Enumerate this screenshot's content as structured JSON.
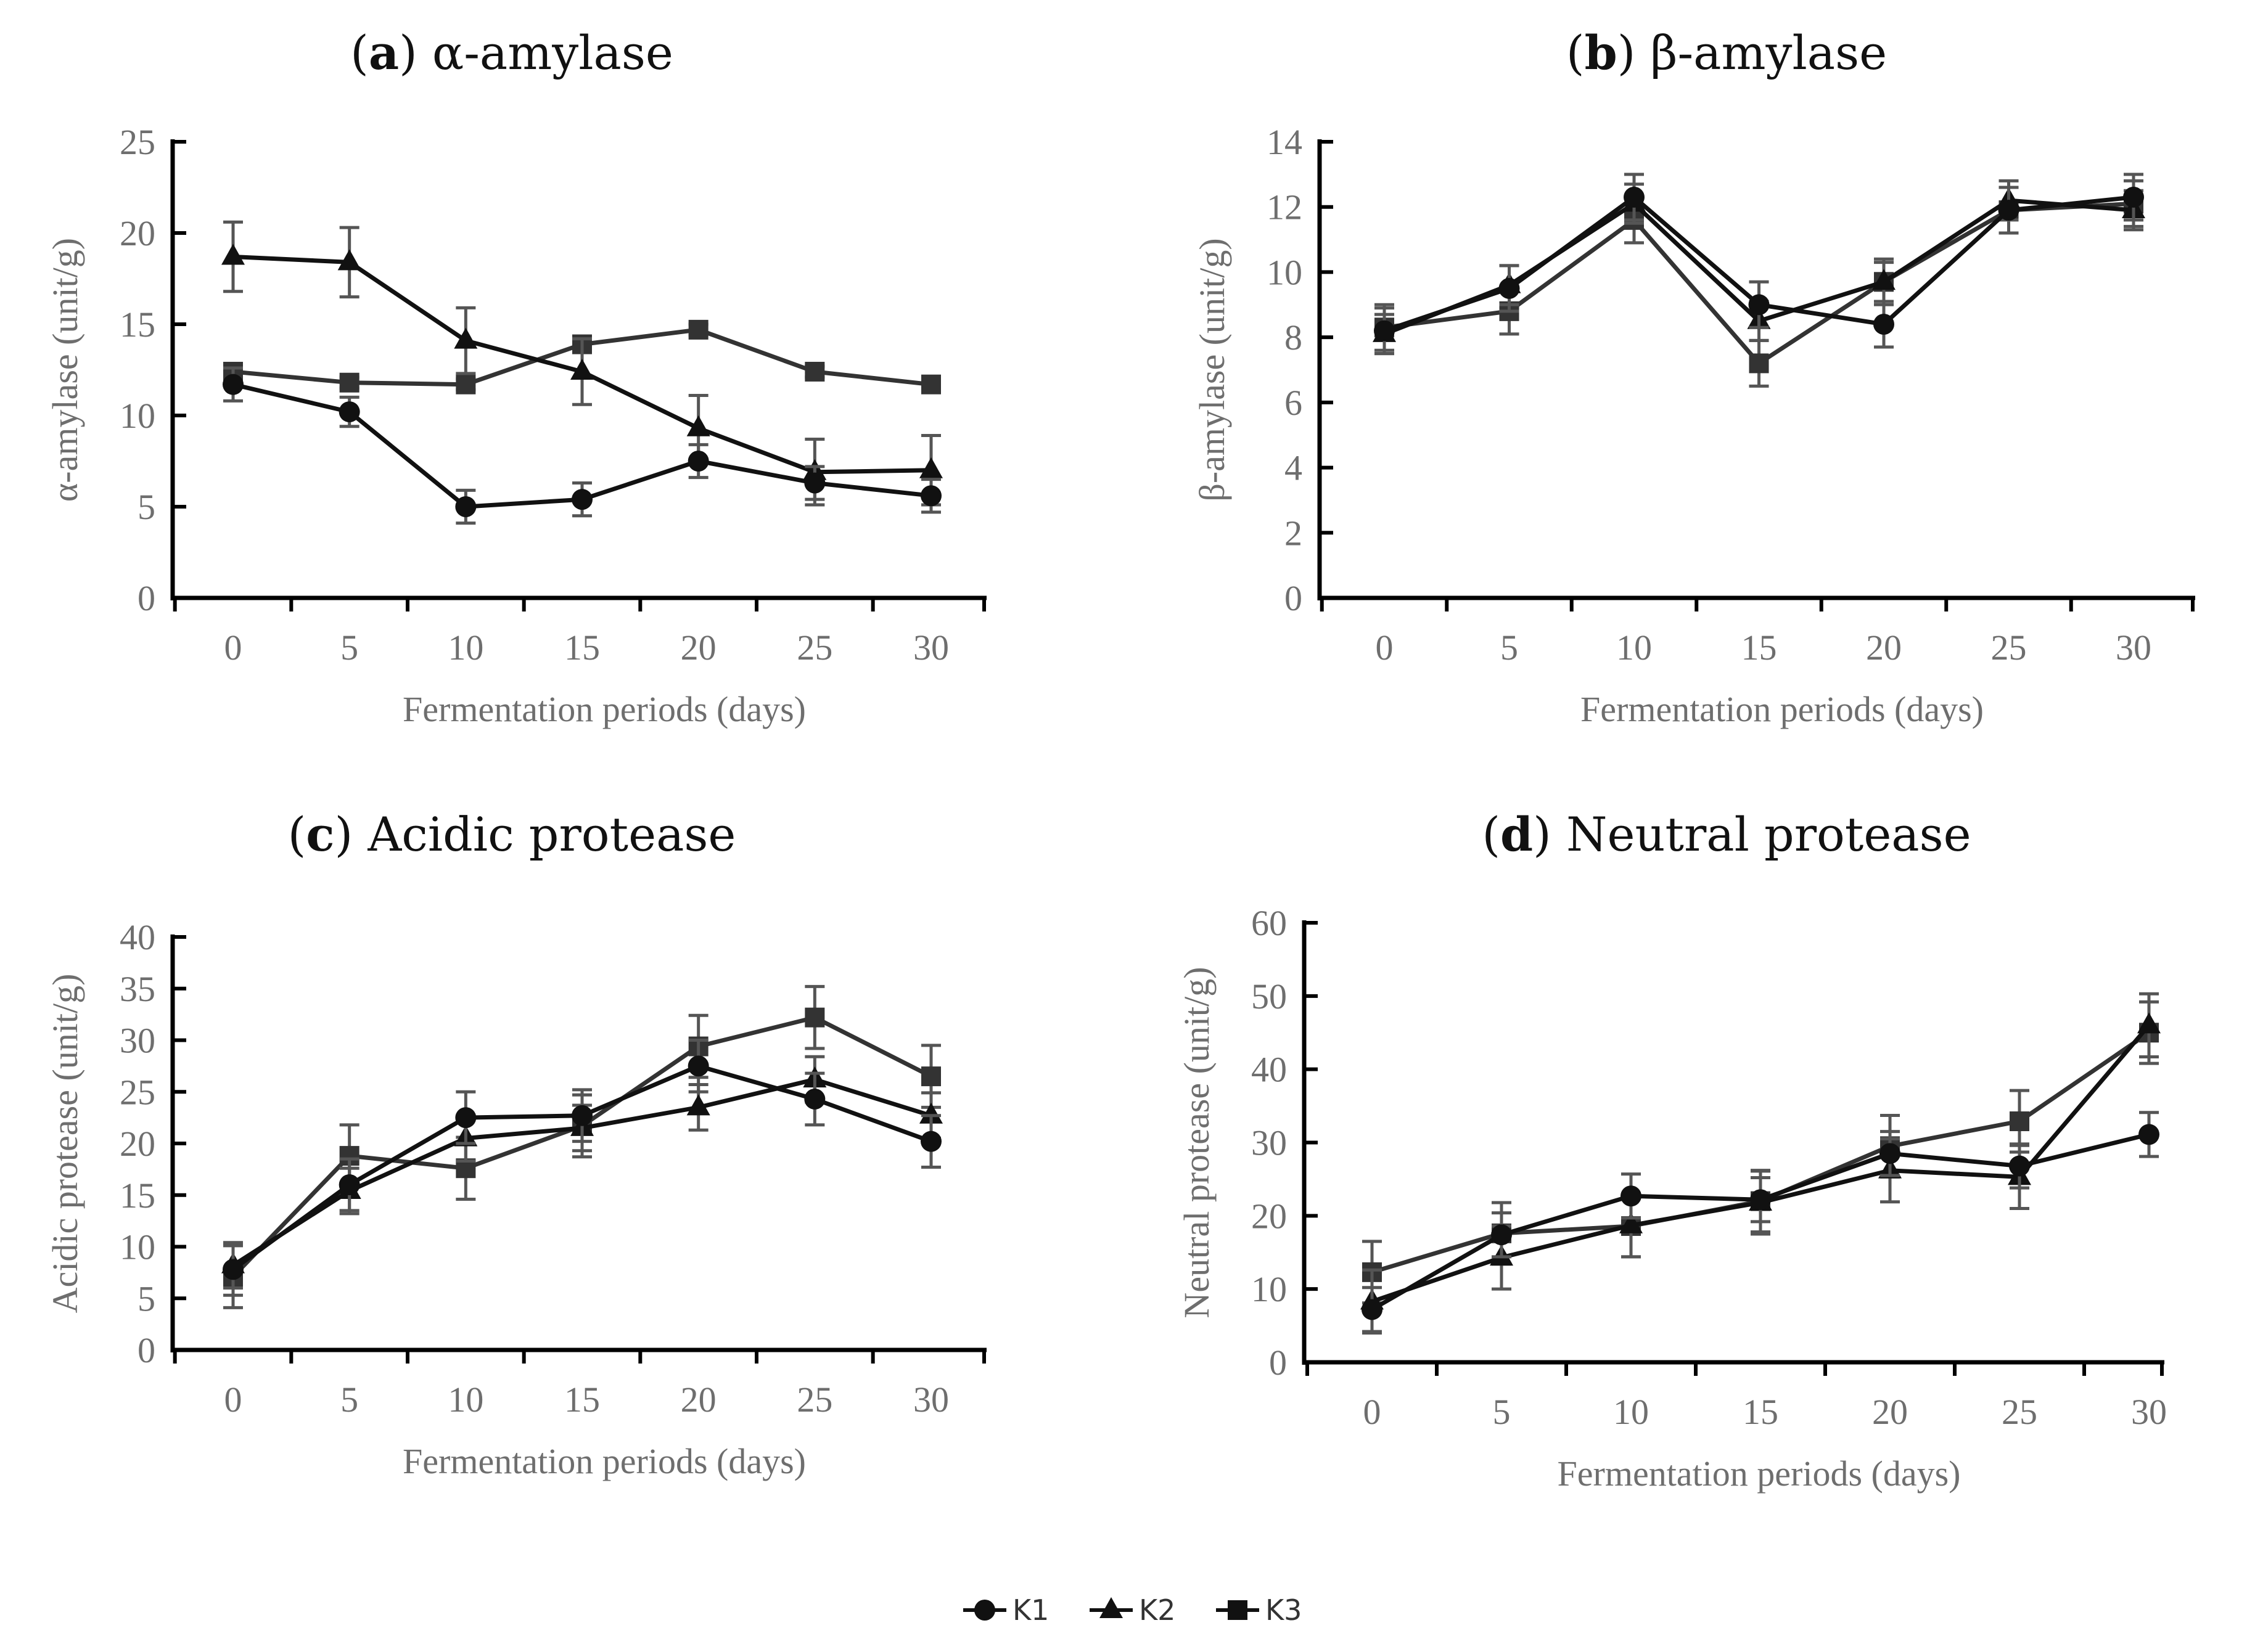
{
  "legend": [
    {
      "id": "K1",
      "label": "K1",
      "marker": "circle"
    },
    {
      "id": "K2",
      "label": "K2",
      "marker": "triangle"
    },
    {
      "id": "K3",
      "label": "K3",
      "marker": "square"
    }
  ],
  "colors": {
    "line": "#111111",
    "k3_line": "#333333",
    "error_bar": "#555555",
    "axis": "#000000",
    "tick_text": "#6e6e6e"
  },
  "chart_data": [
    {
      "id": "a",
      "type": "line",
      "title_letter": "a",
      "title_text": "α-amylase",
      "xlabel": "Fermentation periods (days)",
      "ylabel": "α-amylase (unit/g)",
      "x": [
        0,
        5,
        10,
        15,
        20,
        25,
        30
      ],
      "ylim": [
        0,
        25
      ],
      "yticks": [
        0,
        5,
        10,
        15,
        20,
        25
      ],
      "series": [
        {
          "name": "K1",
          "marker": "circle",
          "values": [
            11.7,
            10.2,
            5.0,
            5.4,
            7.5,
            6.3,
            5.6
          ],
          "errors": [
            0.9,
            0.8,
            0.9,
            0.9,
            0.9,
            0.9,
            0.9
          ]
        },
        {
          "name": "K2",
          "marker": "triangle",
          "values": [
            18.7,
            18.4,
            14.1,
            12.4,
            9.3,
            6.9,
            7.0
          ],
          "errors": [
            1.9,
            1.9,
            1.8,
            1.8,
            1.8,
            1.8,
            1.9
          ]
        },
        {
          "name": "K3",
          "marker": "square",
          "values": [
            12.4,
            11.8,
            11.7,
            13.9,
            14.7,
            12.4,
            11.7
          ],
          "errors": [
            0.3,
            0.3,
            0.3,
            0.3,
            0.3,
            0.3,
            0.3
          ]
        }
      ]
    },
    {
      "id": "b",
      "type": "line",
      "title_letter": "b",
      "title_text": "β-amylase",
      "xlabel": "Fermentation periods (days)",
      "ylabel": "β-amylase (unit/g)",
      "x": [
        0,
        5,
        10,
        15,
        20,
        25,
        30
      ],
      "ylim": [
        0,
        14
      ],
      "yticks": [
        0,
        2,
        4,
        6,
        8,
        10,
        12,
        14
      ],
      "series": [
        {
          "name": "K1",
          "marker": "circle",
          "values": [
            8.2,
            9.5,
            12.3,
            9.0,
            8.4,
            11.9,
            12.3
          ],
          "errors": [
            0.7,
            0.7,
            0.7,
            0.7,
            0.7,
            0.7,
            0.7
          ]
        },
        {
          "name": "K2",
          "marker": "triangle",
          "values": [
            8.1,
            9.6,
            12.1,
            8.5,
            9.7,
            12.2,
            11.9
          ],
          "errors": [
            0.6,
            0.6,
            0.6,
            0.6,
            0.6,
            0.6,
            0.6
          ]
        },
        {
          "name": "K3",
          "marker": "square",
          "values": [
            8.3,
            8.8,
            11.6,
            7.2,
            9.7,
            11.9,
            12.1
          ],
          "errors": [
            0.7,
            0.7,
            0.7,
            0.7,
            0.7,
            0.7,
            0.7
          ]
        }
      ]
    },
    {
      "id": "c",
      "type": "line",
      "title_letter": "c",
      "title_text": "Acidic protease",
      "xlabel": "Fermentation periods (days)",
      "ylabel": "Acidic protease (unit/g)",
      "x": [
        0,
        5,
        10,
        15,
        20,
        25,
        30
      ],
      "ylim": [
        0,
        40
      ],
      "yticks": [
        0,
        5,
        10,
        15,
        20,
        25,
        30,
        35,
        40
      ],
      "series": [
        {
          "name": "K1",
          "marker": "circle",
          "values": [
            7.8,
            16.0,
            22.5,
            22.7,
            27.5,
            24.3,
            20.2
          ],
          "errors": [
            2.5,
            2.5,
            2.5,
            2.5,
            2.5,
            2.5,
            2.5
          ]
        },
        {
          "name": "K2",
          "marker": "triangle",
          "values": [
            8.2,
            15.4,
            20.5,
            21.5,
            23.5,
            26.2,
            22.7
          ],
          "errors": [
            2.2,
            2.2,
            2.2,
            2.2,
            2.2,
            2.2,
            2.2
          ]
        },
        {
          "name": "K3",
          "marker": "square",
          "values": [
            7.1,
            18.8,
            17.6,
            21.7,
            29.4,
            32.2,
            26.5
          ],
          "errors": [
            3.0,
            3.0,
            3.0,
            3.0,
            3.0,
            3.0,
            3.0
          ]
        }
      ]
    },
    {
      "id": "d",
      "type": "line",
      "title_letter": "d",
      "title_text": "Neutral protease",
      "xlabel": "Fermentation periods (days)",
      "ylabel": "Neutral protease (unit/g)",
      "x": [
        0,
        5,
        10,
        15,
        20,
        25,
        30
      ],
      "ylim": [
        0,
        60
      ],
      "yticks": [
        0,
        10,
        20,
        30,
        40,
        50,
        60
      ],
      "series": [
        {
          "name": "K1",
          "marker": "circle",
          "values": [
            7.2,
            17.4,
            22.7,
            22.2,
            28.5,
            26.8,
            31.1
          ],
          "errors": [
            3.0,
            3.0,
            3.0,
            3.0,
            3.0,
            3.0,
            3.0
          ]
        },
        {
          "name": "K2",
          "marker": "triangle",
          "values": [
            8.3,
            14.3,
            18.7,
            21.8,
            26.2,
            25.3,
            46.0
          ],
          "errors": [
            4.3,
            4.3,
            4.3,
            4.3,
            4.3,
            4.3,
            4.3
          ]
        },
        {
          "name": "K3",
          "marker": "square",
          "values": [
            12.3,
            17.6,
            18.6,
            22.0,
            29.5,
            32.9,
            45.0
          ],
          "errors": [
            4.2,
            4.2,
            4.2,
            4.2,
            4.2,
            4.2,
            4.2
          ]
        }
      ]
    }
  ]
}
